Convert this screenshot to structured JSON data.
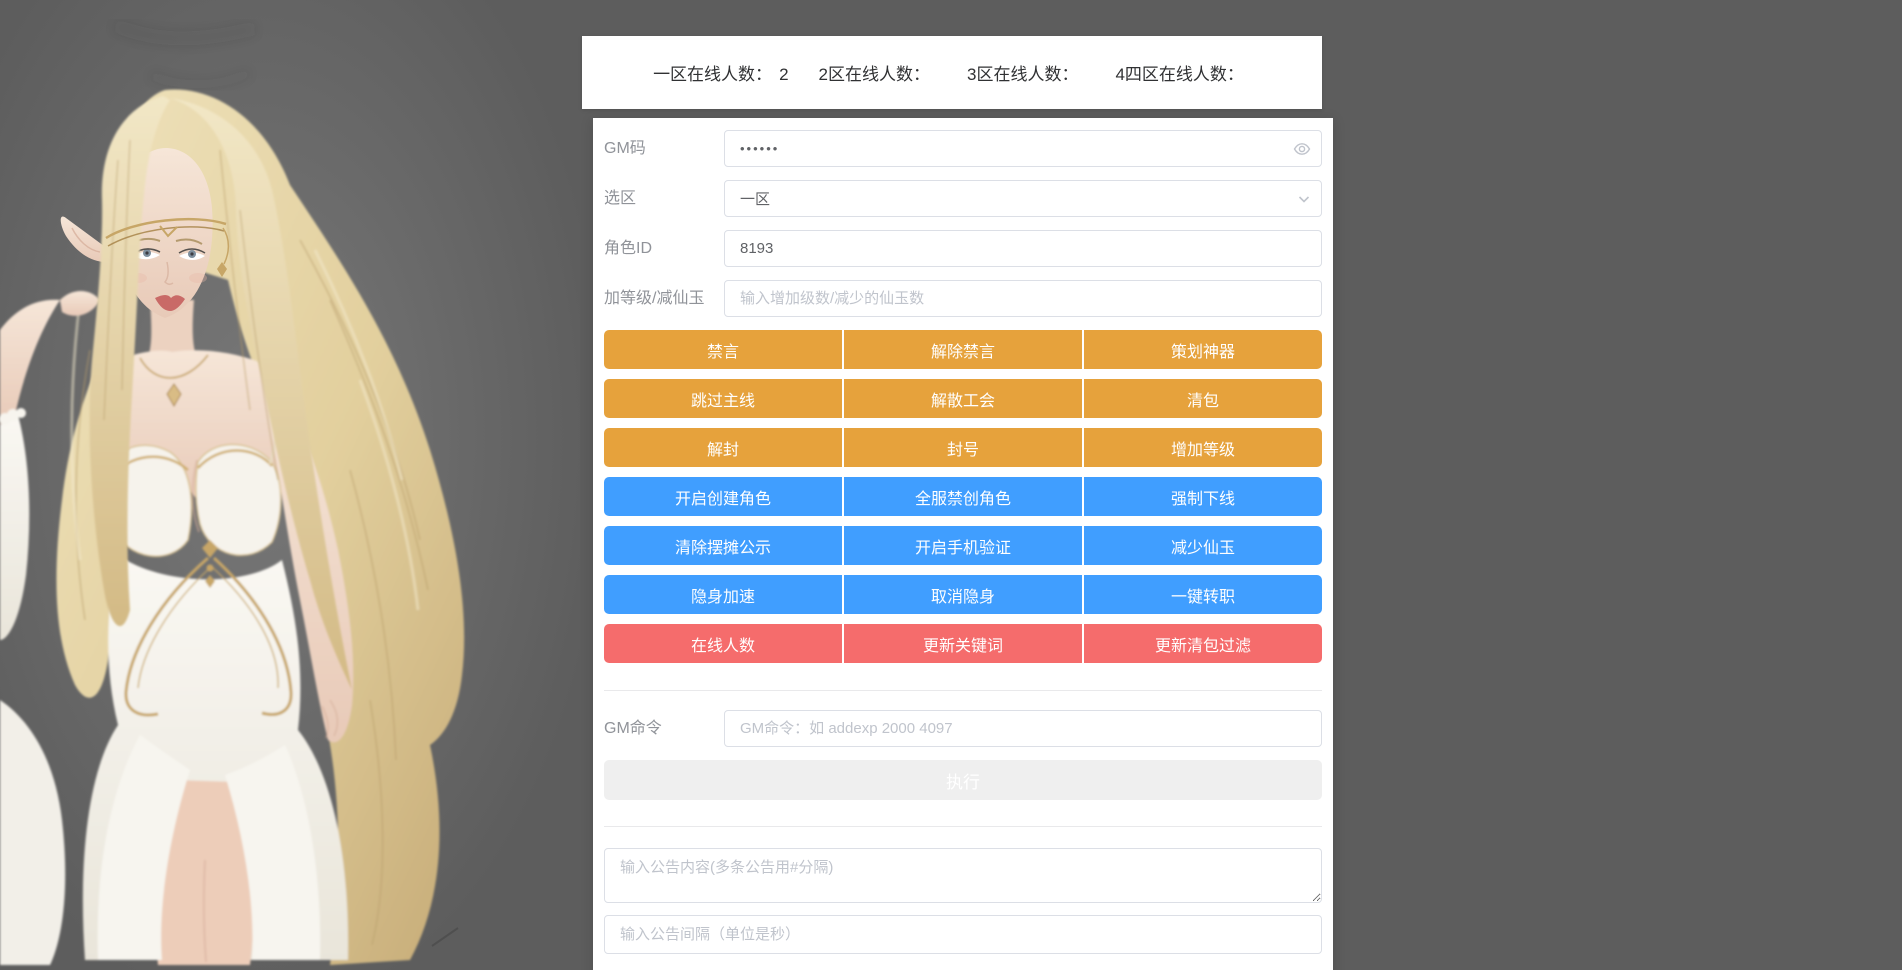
{
  "header": {
    "items": [
      {
        "label": "一区在线人数：",
        "value": "2"
      },
      {
        "label": "2区在线人数：",
        "value": ""
      },
      {
        "label": "3区在线人数：",
        "value": ""
      },
      {
        "label": "4四区在线人数：",
        "value": ""
      }
    ]
  },
  "form": {
    "gm_code": {
      "label": "GM码",
      "value": "••••••"
    },
    "zone": {
      "label": "选区",
      "value": "一区"
    },
    "role_id": {
      "label": "角色ID",
      "value": "8193"
    },
    "level_jade": {
      "label": "加等级/减仙玉",
      "placeholder": "输入增加级数/减少的仙玉数"
    },
    "gm_command": {
      "label": "GM命令",
      "placeholder": "GM命令：如 addexp 2000 4097"
    },
    "execute_label": "执行",
    "notice_content_placeholder": "输入公告内容(多条公告用#分隔)",
    "notice_interval_placeholder": "输入公告间隔（单位是秒）"
  },
  "buttons": {
    "groups": [
      {
        "style": "warning",
        "rows": [
          [
            "禁言",
            "解除禁言",
            "策划神器"
          ],
          [
            "跳过主线",
            "解散工会",
            "清包"
          ],
          [
            "解封",
            "封号",
            "增加等级"
          ]
        ]
      },
      {
        "style": "primary",
        "rows": [
          [
            "开启创建角色",
            "全服禁创角色",
            "强制下线"
          ],
          [
            "清除摆摊公示",
            "开启手机验证",
            "减少仙玉"
          ],
          [
            "隐身加速",
            "取消隐身",
            "一键转职"
          ]
        ]
      },
      {
        "style": "danger",
        "rows": [
          [
            "在线人数",
            "更新关键词",
            "更新清包过滤"
          ]
        ]
      }
    ]
  },
  "colors": {
    "warning": "#e6a23c",
    "primary": "#409eff",
    "danger": "#f56c6c",
    "page_bg": "#5d5d5d"
  },
  "icons": {
    "password_eye": "eye-icon",
    "zone_chevron": "chevron-down-icon"
  }
}
